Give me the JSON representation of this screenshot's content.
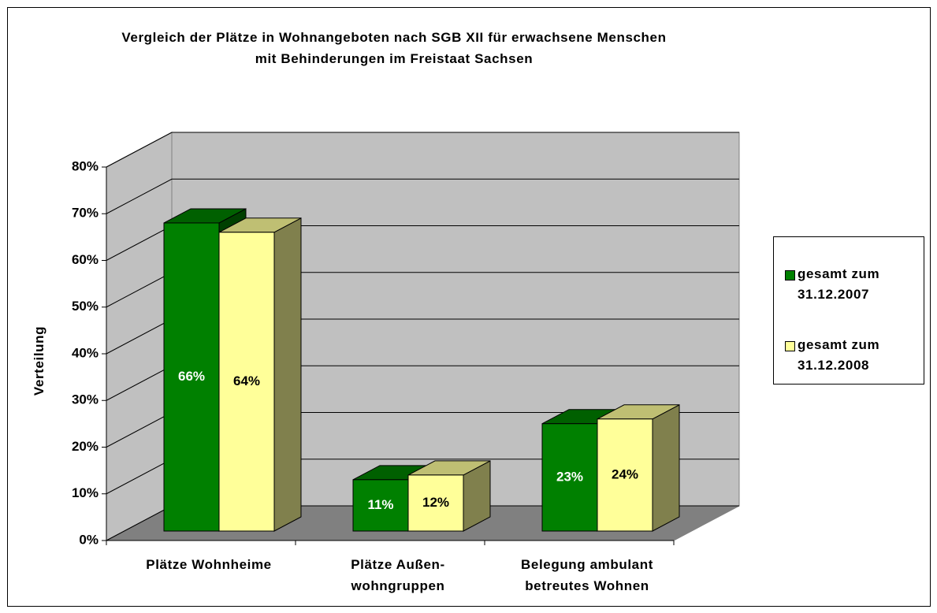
{
  "chart_data": {
    "type": "bar3d",
    "title": "Vergleich der Plätze in Wohnangeboten nach SGB XII für erwachsene Menschen\nmit Behinderungen im Freistaat Sachsen",
    "y_label": "Verteilung",
    "categories": [
      "Plätze Wohnheime",
      "Plätze Außen-\nwohngruppen",
      "Belegung ambulant\nbetreutes Wohnen"
    ],
    "series": [
      {
        "name": "gesamt zum\n31.12.2007",
        "color": "#008000",
        "values": [
          66,
          11,
          23
        ],
        "value_labels": [
          "66%",
          "11%",
          "23%"
        ]
      },
      {
        "name": "gesamt zum\n31.12.2008",
        "color": "#ffff99",
        "values": [
          64,
          12,
          24
        ],
        "value_labels": [
          "64%",
          "12%",
          "24%"
        ]
      }
    ],
    "ylim": [
      0,
      80
    ],
    "yticks": [
      {
        "value": 0,
        "label": "0%"
      },
      {
        "value": 10,
        "label": "10%"
      },
      {
        "value": 20,
        "label": "20%"
      },
      {
        "value": 30,
        "label": "30%"
      },
      {
        "value": 40,
        "label": "40%"
      },
      {
        "value": 50,
        "label": "50%"
      },
      {
        "value": 60,
        "label": "60%"
      },
      {
        "value": 70,
        "label": "70%"
      },
      {
        "value": 80,
        "label": "80%"
      }
    ],
    "grid": true,
    "legend": "right"
  }
}
